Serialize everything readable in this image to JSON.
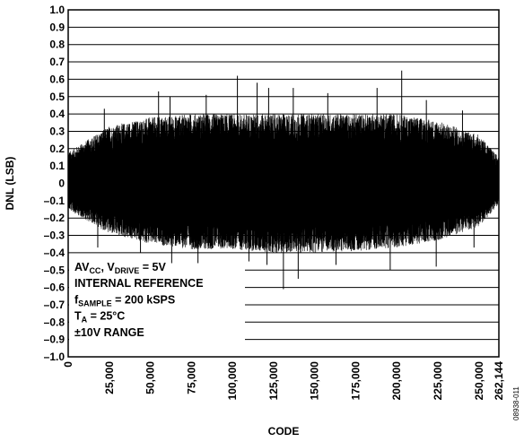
{
  "chart_data": {
    "type": "line",
    "title": "",
    "xlabel": "CODE",
    "ylabel": "DNL (LSB)",
    "xlim": [
      0,
      262144
    ],
    "ylim": [
      -1.0,
      1.0
    ],
    "x_ticks": [
      0,
      25000,
      50000,
      75000,
      100000,
      125000,
      150000,
      175000,
      200000,
      225000,
      250000,
      262144
    ],
    "x_tick_labels": [
      "0",
      "25,000",
      "50,000",
      "75,000",
      "100,000",
      "125,000",
      "150,000",
      "175,000",
      "200,000",
      "225,000",
      "250,000",
      "262,144"
    ],
    "y_ticks": [
      1.0,
      0.9,
      0.8,
      0.7,
      0.6,
      0.5,
      0.4,
      0.3,
      0.2,
      0.1,
      0,
      -0.1,
      -0.2,
      -0.3,
      -0.4,
      -0.5,
      -0.6,
      -0.7,
      -0.8,
      -0.9,
      -1.0
    ],
    "y_tick_labels": [
      "1.0",
      "0.9",
      "0.8",
      "0.7",
      "0.6",
      "0.5",
      "0.4",
      "0.3",
      "0.2",
      "0.1",
      "0",
      "–0.1",
      "–0.2",
      "–0.3",
      "–0.4",
      "–0.5",
      "–0.6",
      "–0.7",
      "–0.8",
      "–0.9",
      "–1.0"
    ],
    "grid": "horizontal",
    "envelope": {
      "code": [
        0,
        25000,
        50000,
        75000,
        100000,
        125000,
        150000,
        175000,
        200000,
        225000,
        250000,
        262144
      ],
      "upper": [
        0.18,
        0.33,
        0.38,
        0.4,
        0.4,
        0.4,
        0.4,
        0.4,
        0.4,
        0.36,
        0.28,
        0.15
      ],
      "lower": [
        -0.15,
        -0.29,
        -0.35,
        -0.38,
        -0.38,
        -0.4,
        -0.4,
        -0.39,
        -0.37,
        -0.33,
        -0.25,
        -0.12
      ]
    },
    "peaks": [
      {
        "x": 22000,
        "y": 0.43
      },
      {
        "x": 55000,
        "y": 0.53
      },
      {
        "x": 62000,
        "y": 0.5
      },
      {
        "x": 84000,
        "y": 0.51
      },
      {
        "x": 103000,
        "y": 0.62
      },
      {
        "x": 115000,
        "y": 0.58
      },
      {
        "x": 122000,
        "y": 0.55
      },
      {
        "x": 137000,
        "y": 0.55
      },
      {
        "x": 158000,
        "y": 0.52
      },
      {
        "x": 188000,
        "y": 0.55
      },
      {
        "x": 203000,
        "y": 0.65
      },
      {
        "x": 218000,
        "y": 0.48
      },
      {
        "x": 240000,
        "y": 0.42
      }
    ],
    "troughs": [
      {
        "x": 18000,
        "y": -0.37
      },
      {
        "x": 44000,
        "y": -0.4
      },
      {
        "x": 63000,
        "y": -0.48
      },
      {
        "x": 79000,
        "y": -0.46
      },
      {
        "x": 110000,
        "y": -0.45
      },
      {
        "x": 121000,
        "y": -0.47
      },
      {
        "x": 131000,
        "y": -0.61
      },
      {
        "x": 140000,
        "y": -0.55
      },
      {
        "x": 163000,
        "y": -0.47
      },
      {
        "x": 196000,
        "y": -0.5
      },
      {
        "x": 224000,
        "y": -0.48
      },
      {
        "x": 247000,
        "y": -0.37
      }
    ],
    "annotation_lines": [
      {
        "parts": [
          {
            "t": "AV"
          },
          {
            "t": "CC",
            "sub": true
          },
          {
            "t": ", V"
          },
          {
            "t": "DRIVE",
            "sub": true
          },
          {
            "t": " = 5V"
          }
        ]
      },
      {
        "parts": [
          {
            "t": "INTERNAL REFERENCE"
          }
        ]
      },
      {
        "parts": [
          {
            "t": "f"
          },
          {
            "t": "SAMPLE",
            "sub": true
          },
          {
            "t": " = 200 kSPS"
          }
        ]
      },
      {
        "parts": [
          {
            "t": "T"
          },
          {
            "t": "A",
            "sub": true
          },
          {
            "t": " = 25°C"
          }
        ]
      },
      {
        "parts": [
          {
            "t": "±10V RANGE"
          }
        ]
      }
    ],
    "figure_id": "08938-011"
  },
  "colors": {
    "trace": "#000000",
    "grid": "#000000",
    "background": "#ffffff"
  }
}
